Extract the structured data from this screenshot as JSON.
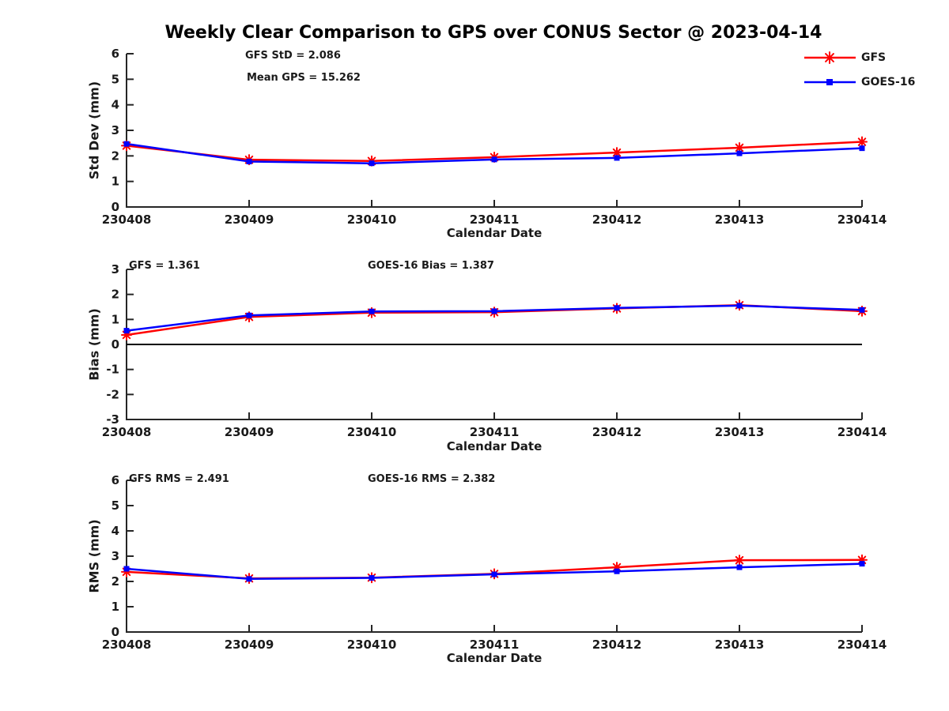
{
  "title": "Weekly Clear Comparison to GPS over CONUS Sector @ 2023-04-14",
  "colors": {
    "gfs": "#ff0000",
    "goes16": "#0000ff",
    "axis": "#262626",
    "text": "#1a1a1a",
    "zero_line": "#000000"
  },
  "legend": {
    "position": "top-right",
    "items": [
      {
        "label": "GFS",
        "marker": "asterisk-marker",
        "color": "#ff0000"
      },
      {
        "label": "GOES-16",
        "marker": "square-marker",
        "color": "#0000ff"
      }
    ]
  },
  "categories": [
    "230408",
    "230409",
    "230410",
    "230411",
    "230412",
    "230413",
    "230414"
  ],
  "chart_data": [
    {
      "type": "line",
      "ylabel": "Std Dev (mm)",
      "xlabel": "Calendar Date",
      "ylim": [
        0,
        6
      ],
      "yticks": [
        0,
        1,
        2,
        3,
        4,
        5,
        6
      ],
      "grid": false,
      "zero_line": false,
      "annotations": [
        "GFS StD = 2.086",
        "Mean GPS = 15.262"
      ],
      "series": [
        {
          "name": "GFS",
          "color": "#ff0000",
          "marker": "asterisk",
          "values": [
            2.4,
            1.85,
            1.8,
            1.95,
            2.13,
            2.32,
            2.55
          ]
        },
        {
          "name": "GOES-16",
          "color": "#0000ff",
          "marker": "square",
          "values": [
            2.47,
            1.78,
            1.71,
            1.86,
            1.92,
            2.1,
            2.3
          ]
        }
      ]
    },
    {
      "type": "line",
      "ylabel": "Bias (mm)",
      "xlabel": "Calendar Date",
      "ylim": [
        -3,
        3
      ],
      "yticks": [
        -3,
        -2,
        -1,
        0,
        1,
        2,
        3
      ],
      "grid": false,
      "zero_line": true,
      "annotations": [
        "GFS = 1.361",
        "GOES-16 Bias  = 1.387"
      ],
      "series": [
        {
          "name": "GFS",
          "color": "#ff0000",
          "marker": "asterisk",
          "values": [
            0.38,
            1.1,
            1.27,
            1.29,
            1.44,
            1.57,
            1.33
          ]
        },
        {
          "name": "GOES-16",
          "color": "#0000ff",
          "marker": "square",
          "values": [
            0.55,
            1.16,
            1.32,
            1.33,
            1.46,
            1.55,
            1.38
          ]
        }
      ]
    },
    {
      "type": "line",
      "ylabel": "RMS (mm)",
      "xlabel": "Calendar Date",
      "ylim": [
        0,
        6
      ],
      "yticks": [
        0,
        1,
        2,
        3,
        4,
        5,
        6
      ],
      "grid": false,
      "zero_line": false,
      "annotations": [
        "GFS RMS = 2.491",
        "GOES-16 RMS = 2.382"
      ],
      "series": [
        {
          "name": "GFS",
          "color": "#ff0000",
          "marker": "asterisk",
          "values": [
            2.38,
            2.12,
            2.15,
            2.3,
            2.56,
            2.84,
            2.85
          ]
        },
        {
          "name": "GOES-16",
          "color": "#0000ff",
          "marker": "square",
          "values": [
            2.5,
            2.1,
            2.14,
            2.28,
            2.4,
            2.56,
            2.7
          ]
        }
      ]
    }
  ]
}
